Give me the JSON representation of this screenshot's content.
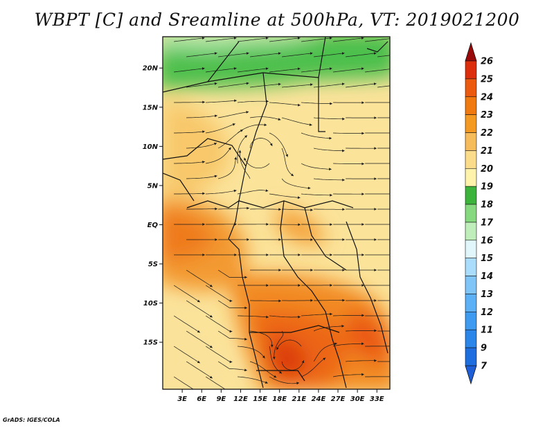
{
  "title": "WBPT [C] and Sreamline at 500hPa, VT: 2019021200",
  "credit": "GrADS: IGES/COLA",
  "map": {
    "lon_range": [
      0,
      35
    ],
    "lat_range": [
      -21,
      24
    ],
    "lat_ticks": [
      {
        "value": 20,
        "label": "20N"
      },
      {
        "value": 15,
        "label": "15N"
      },
      {
        "value": 10,
        "label": "10N"
      },
      {
        "value": 5,
        "label": "5N"
      },
      {
        "value": 0,
        "label": "EQ"
      },
      {
        "value": -5,
        "label": "5S"
      },
      {
        "value": -10,
        "label": "10S"
      },
      {
        "value": -15,
        "label": "15S"
      }
    ],
    "lon_ticks": [
      {
        "value": 3,
        "label": "3E"
      },
      {
        "value": 6,
        "label": "6E"
      },
      {
        "value": 9,
        "label": "9E"
      },
      {
        "value": 12,
        "label": "12E"
      },
      {
        "value": 15,
        "label": "15E"
      },
      {
        "value": 18,
        "label": "18E"
      },
      {
        "value": 21,
        "label": "21E"
      },
      {
        "value": 24,
        "label": "24E"
      },
      {
        "value": 27,
        "label": "27E"
      },
      {
        "value": 30,
        "label": "30E"
      },
      {
        "value": 33,
        "label": "33E"
      }
    ]
  },
  "colorbar": {
    "levels": [
      {
        "label": "7",
        "color": "#1e6ee0"
      },
      {
        "label": "9",
        "color": "#2a86e8"
      },
      {
        "label": "11",
        "color": "#3e9bf0"
      },
      {
        "label": "12",
        "color": "#5cb0f5"
      },
      {
        "label": "13",
        "color": "#80c5f8"
      },
      {
        "label": "14",
        "color": "#aadcfb"
      },
      {
        "label": "15",
        "color": "#e0f6fb"
      },
      {
        "label": "16",
        "color": "#bfeebb"
      },
      {
        "label": "17",
        "color": "#86d97e"
      },
      {
        "label": "18",
        "color": "#3cb43c"
      },
      {
        "label": "19",
        "color": "#fff3ac"
      },
      {
        "label": "20",
        "color": "#fbdc8a"
      },
      {
        "label": "21",
        "color": "#f6bb5a"
      },
      {
        "label": "22",
        "color": "#f49a23"
      },
      {
        "label": "23",
        "color": "#f07a10"
      },
      {
        "label": "24",
        "color": "#ec5a10"
      },
      {
        "label": "25",
        "color": "#dc2e0c"
      },
      {
        "label": "26",
        "color": "#b40a0a"
      }
    ],
    "under_color": "#1e5fd8",
    "over_color": "#9a0a0a"
  }
}
